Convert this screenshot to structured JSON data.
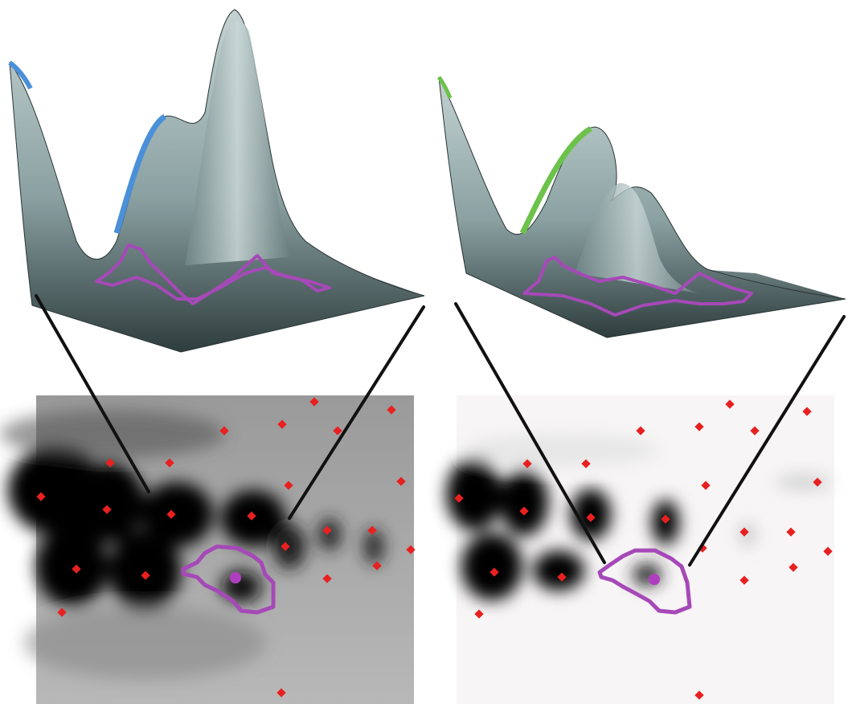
{
  "figure": {
    "description_visible_text": "",
    "panels": [
      {
        "id": "left",
        "surface_edge_color": "#4a90d9",
        "gel_background": "gray",
        "spot_count": 24
      },
      {
        "id": "right",
        "surface_edge_color": "#6cc24a",
        "gel_background": "white",
        "spot_count": 22
      }
    ],
    "colors": {
      "surface": "#8fa3a4",
      "surface_dark": "#2c3a3b",
      "outline": "#a649b8",
      "spot": "#e82020",
      "connector": "#111111"
    }
  }
}
